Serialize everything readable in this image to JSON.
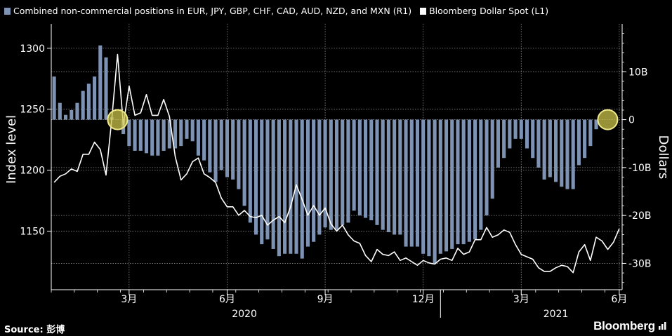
{
  "legend": {
    "bar_label": "Combined non-commercial positions in EUR, JPY, GBP, CHF, CAD, AUD, NZD, and MXN (R1)",
    "line_label": "Bloomberg Dollar Spot (L1)"
  },
  "source_label": "Source: 彭博",
  "brand": "Bloomberg",
  "colors": {
    "bar": "#7e92b4",
    "line": "#ffffff",
    "grid": "#8a8a8a",
    "marker_fill": "#c9c24a",
    "marker_stroke": "#f0e98a"
  },
  "chart_data": {
    "type": "bar+line",
    "left_axis": {
      "title": "Index level",
      "ticks": [
        1150,
        1200,
        1250,
        1300
      ],
      "range": [
        1102,
        1320
      ]
    },
    "right_axis": {
      "title": "Dollars",
      "ticks": [
        "-30B",
        "-20B",
        "-10B",
        "0",
        "10B"
      ],
      "tick_values": [
        -30,
        -20,
        -10,
        0,
        10
      ],
      "range": [
        -35.5,
        20
      ]
    },
    "x_ticks": [
      {
        "label": "3月",
        "index": 13
      },
      {
        "label": "6月",
        "index": 30
      },
      {
        "label": "9月",
        "index": 47
      },
      {
        "label": "12月",
        "index": 64
      },
      {
        "label": "3月",
        "index": 81
      },
      {
        "label": "6月",
        "index": 98
      }
    ],
    "year_labels": [
      {
        "label": "2020",
        "index": 33
      },
      {
        "label": "2021",
        "index": 87
      }
    ],
    "year_divider_index": 67,
    "series": [
      {
        "name": "Combined non-commercial positions in EUR, JPY, GBP, CHF, CAD, AUD, NZD, and MXN (R1)",
        "kind": "bar",
        "axis": "right",
        "unit": "billion USD",
        "values": [
          9,
          3.5,
          1,
          2,
          3.5,
          6,
          7.5,
          9,
          15.5,
          13,
          0.5,
          0,
          -3,
          -5.5,
          -6.5,
          -6.5,
          -7,
          -7.5,
          -7.5,
          -6.5,
          -6,
          -6,
          -5.5,
          -4,
          -4.5,
          -7.5,
          -8.5,
          -11,
          -13,
          -10.5,
          -12,
          -12.5,
          -14.5,
          -18,
          -21.5,
          -24,
          -26,
          -25,
          -27,
          -28.5,
          -28,
          -28,
          -28,
          -29,
          -26.5,
          -25.5,
          -24,
          -22.5,
          -23,
          -23,
          -22,
          -21.5,
          -19,
          -20,
          -20.5,
          -21,
          -22,
          -23,
          -23.5,
          -24,
          -24,
          -26.5,
          -26.5,
          -26.5,
          -28,
          -28.5,
          -30,
          -28,
          -27.5,
          -27,
          -26,
          -26,
          -25.5,
          -25,
          -23,
          -20,
          -16.5,
          -10,
          -8,
          -6,
          -4,
          -4,
          -6,
          -8,
          -10,
          -12.5,
          -12,
          -13,
          -14,
          -14.5,
          -14.5,
          -9.5,
          -8,
          -5.5,
          -2
        ]
      },
      {
        "name": "Bloomberg Dollar Spot (L1)",
        "kind": "line",
        "axis": "left",
        "unit": "index level",
        "values": [
          1190,
          1195,
          1197,
          1201,
          1199,
          1213,
          1213,
          1223,
          1217,
          1196,
          1242,
          1295,
          1237,
          1269,
          1245,
          1247,
          1262,
          1245,
          1245,
          1258,
          1244,
          1211,
          1192,
          1197,
          1207,
          1210,
          1197,
          1194,
          1190,
          1177,
          1170,
          1170,
          1163,
          1167,
          1162,
          1161,
          1163,
          1155,
          1159,
          1162,
          1157,
          1170,
          1188,
          1176,
          1163,
          1171,
          1163,
          1169,
          1156,
          1150,
          1155,
          1147,
          1142,
          1140,
          1130,
          1125,
          1135,
          1131,
          1130,
          1133,
          1126,
          1128,
          1125,
          1122,
          1126,
          1124,
          1123,
          1127,
          1128,
          1126,
          1136,
          1131,
          1133,
          1143,
          1143,
          1153,
          1145,
          1147,
          1151,
          1149,
          1139,
          1131,
          1129,
          1127,
          1120,
          1117,
          1117,
          1120,
          1122,
          1121,
          1116,
          1133,
          1139,
          1126,
          1145,
          1142,
          1135,
          1141,
          1152
        ]
      }
    ],
    "highlight_indices": [
      11,
      96
    ]
  }
}
